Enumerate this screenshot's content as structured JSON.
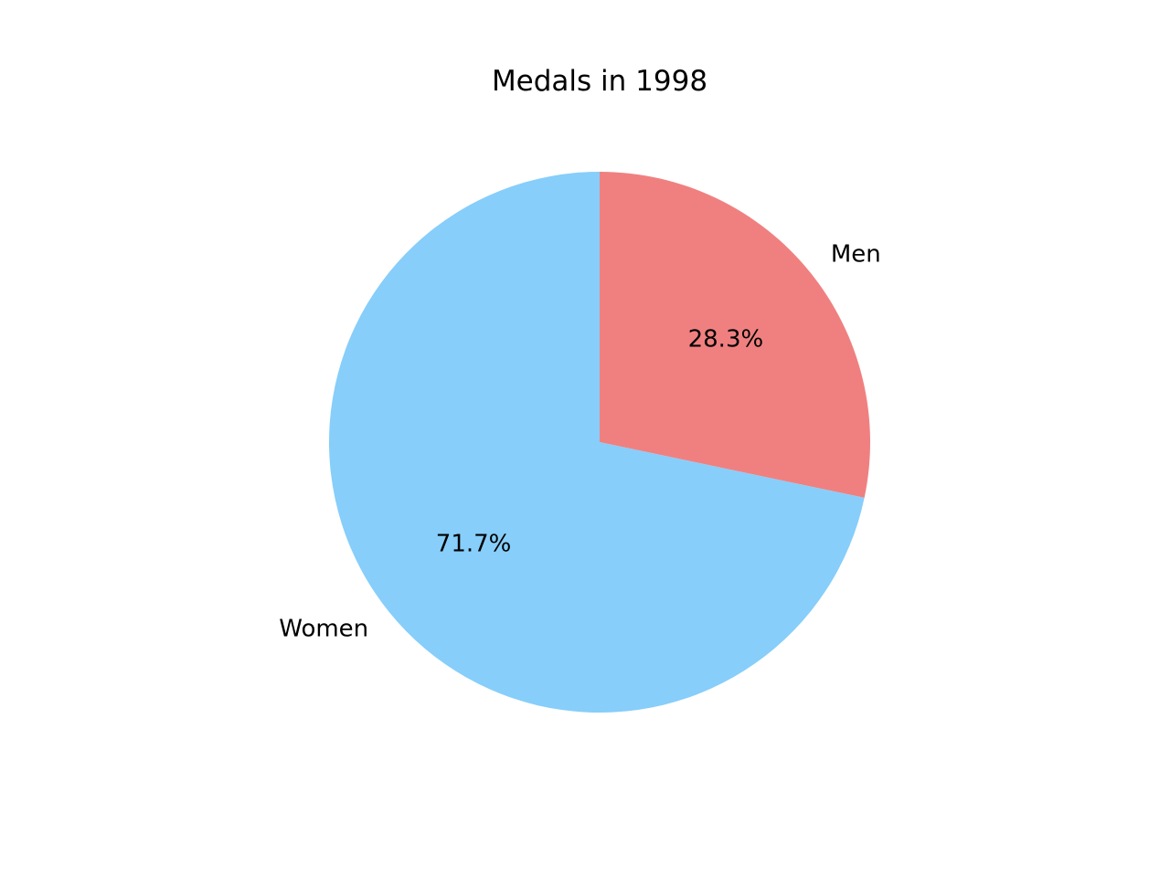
{
  "chart_data": {
    "type": "pie",
    "title": "Medals in 1998",
    "start_angle_deg": 90,
    "direction": "clockwise",
    "slices": [
      {
        "label": "Men",
        "value": 28.3,
        "pct_label": "28.3%",
        "color": "#F08080"
      },
      {
        "label": "Women",
        "value": 71.7,
        "pct_label": "71.7%",
        "color": "#87CEFA"
      }
    ]
  }
}
